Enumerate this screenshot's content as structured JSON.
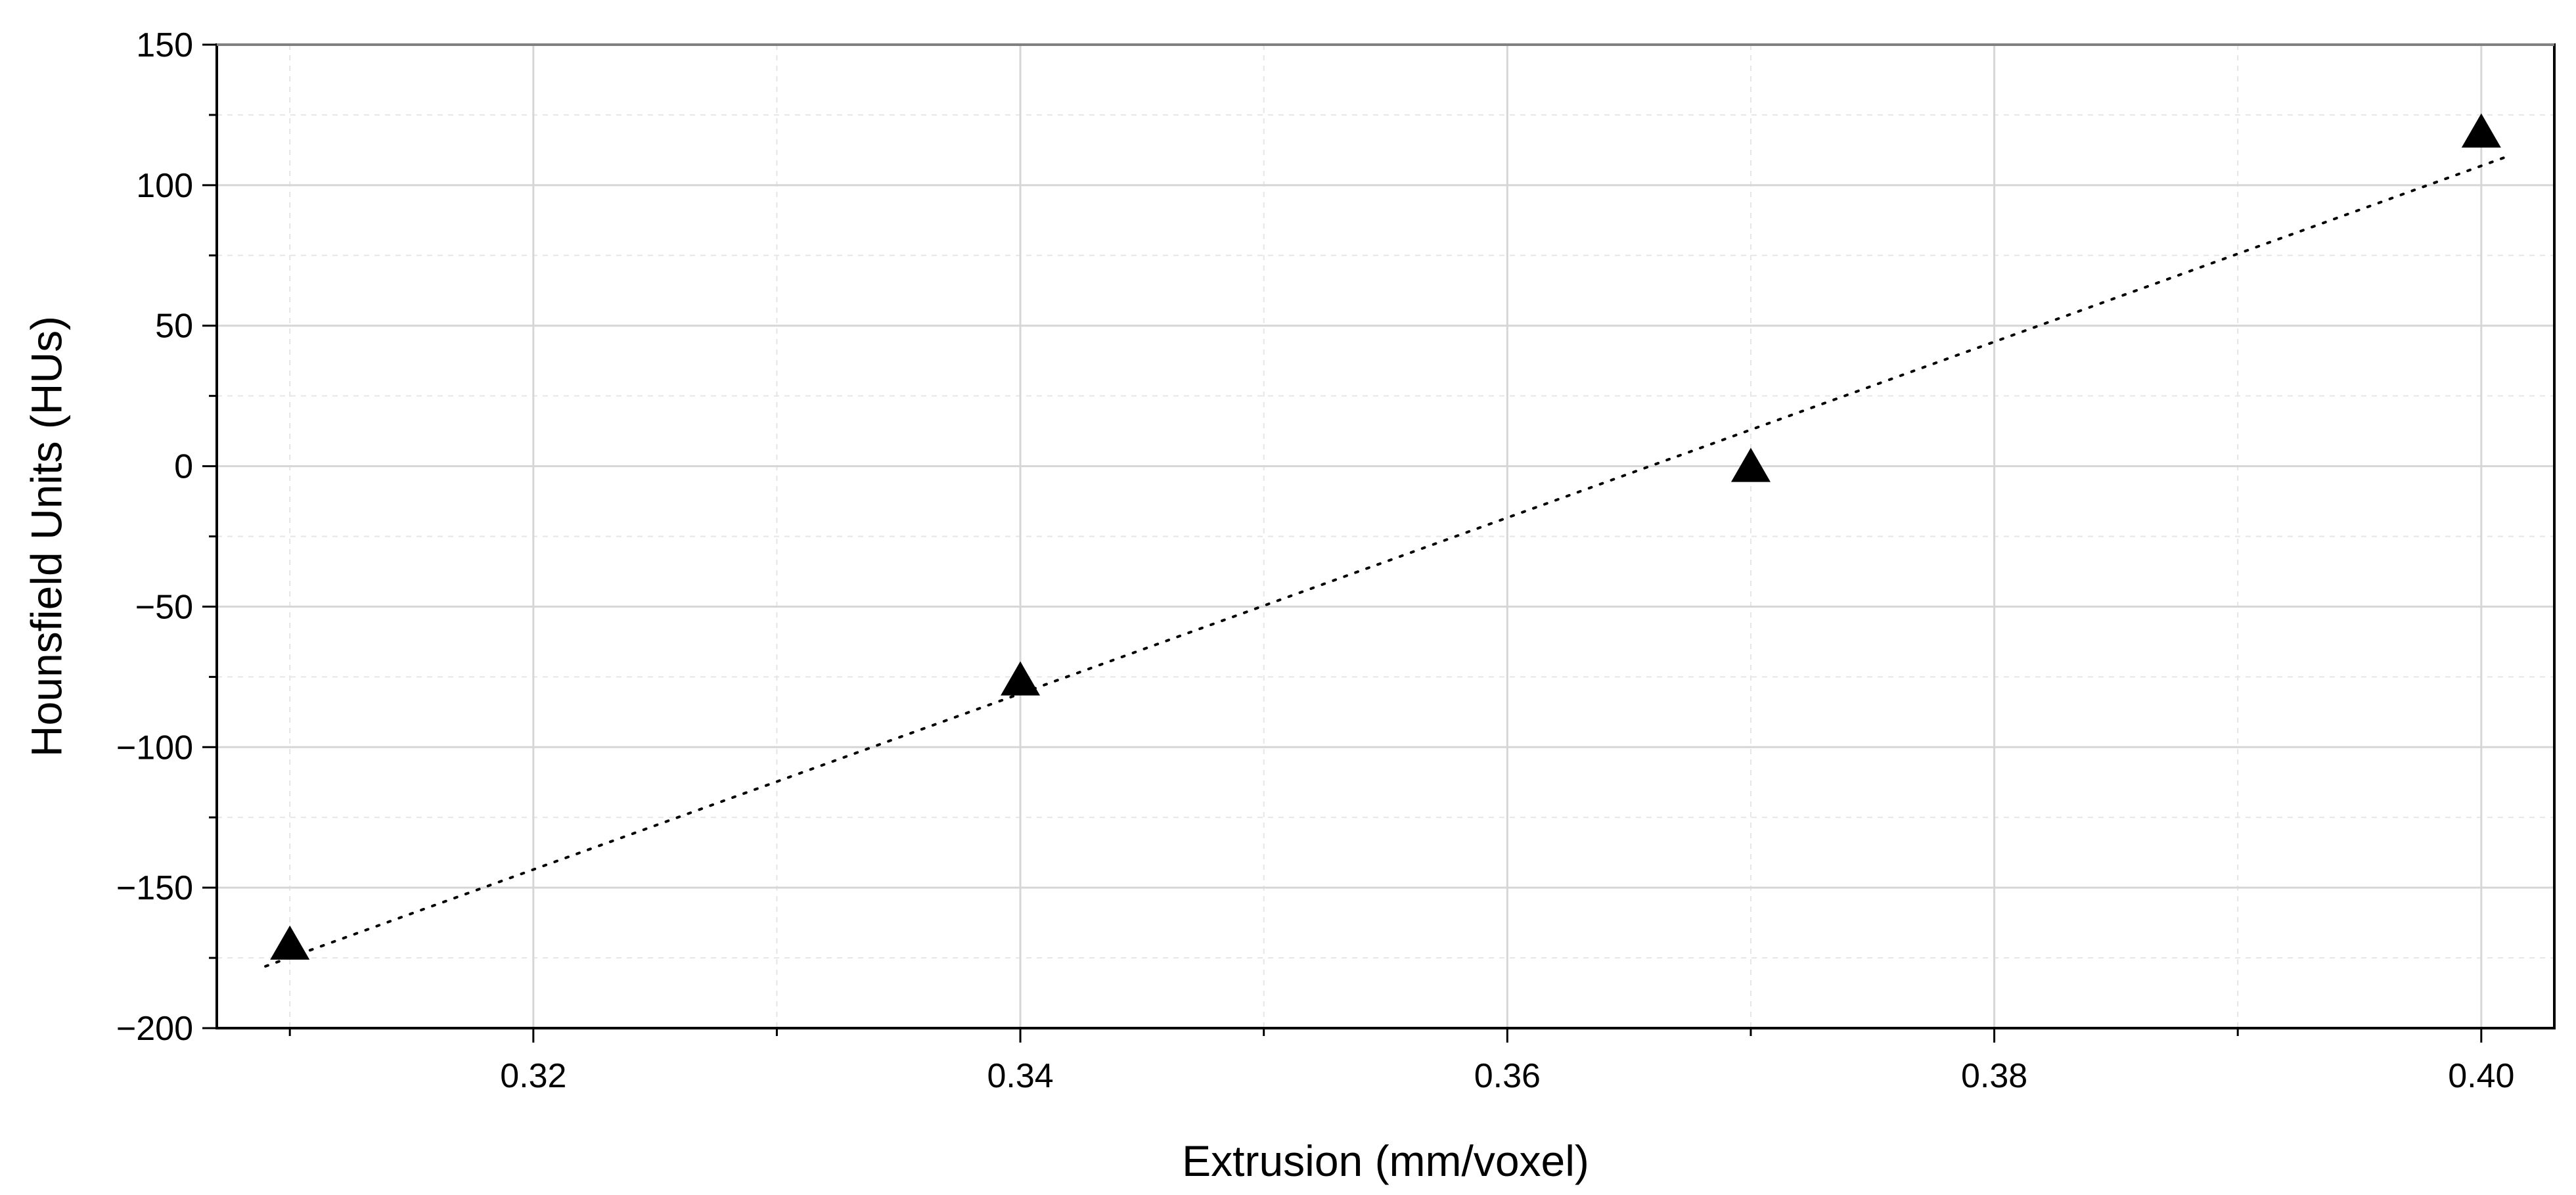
{
  "chart_data": {
    "type": "scatter",
    "title": "",
    "xlabel": "Extrusion (mm/voxel)",
    "ylabel": "Hounsfield Units (HUs)",
    "xlim": [
      0.307,
      0.403
    ],
    "ylim": [
      -200,
      150
    ],
    "x_ticks": [
      0.32,
      0.34,
      0.36,
      0.38,
      0.4
    ],
    "x_tick_labels": [
      "0.32",
      "0.34",
      "0.36",
      "0.38",
      "0.40"
    ],
    "x_minor_ticks": [
      0.31,
      0.33,
      0.35,
      0.37,
      0.39
    ],
    "y_ticks": [
      -200,
      -150,
      -100,
      -50,
      0,
      50,
      100,
      150
    ],
    "y_tick_labels": [
      "−200",
      "−150",
      "−100",
      "−50",
      "0",
      "50",
      "100",
      "150"
    ],
    "y_minor_ticks": [
      -175,
      -125,
      -75,
      -25,
      25,
      75,
      125
    ],
    "grid": true,
    "legend": "none",
    "series": [
      {
        "marker": "triangle",
        "color": "#000000",
        "x": [
          0.31,
          0.34,
          0.37,
          0.4
        ],
        "y": [
          -171,
          -77,
          -1,
          118
        ]
      }
    ],
    "trendline": {
      "style": "dotted",
      "color": "#000000",
      "x": [
        0.309,
        0.401
      ],
      "y": [
        -178,
        110
      ]
    }
  }
}
